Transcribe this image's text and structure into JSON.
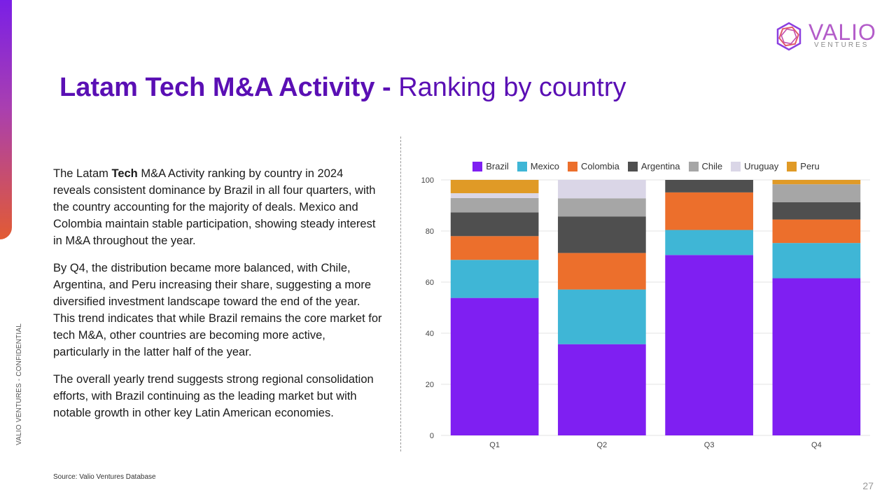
{
  "brand": {
    "name": "VALIO",
    "sub": "VENTURES",
    "vertical_label": "VALIO VENTURES - CONFIDENTIAL"
  },
  "slide": {
    "title_strong": "Latam Tech M&A Activity -",
    "title_light": " Ranking by country",
    "paragraph1_a": "The Latam ",
    "paragraph1_bold": "Tech",
    "paragraph1_b": " M&A Activity ranking by country in 2024 reveals consistent dominance by Brazil in all four quarters, with the country accounting for the majority of deals. Mexico and Colombia maintain stable participation, showing steady interest in M&A throughout the year.",
    "paragraph2": "By Q4, the distribution became more balanced, with Chile, Argentina, and Peru increasing their share, suggesting a more diversified investment landscape toward the end of the year. This trend indicates that while Brazil remains the core market for tech M&A, other countries are becoming more active, particularly in the latter half of the year.",
    "paragraph3": "The overall yearly trend suggests strong regional consolidation efforts, with Brazil continuing as the leading market but with notable growth in other key Latin American economies.",
    "source": "Source: Valio Ventures Database",
    "page_number": "27"
  },
  "chart_data": {
    "type": "bar",
    "stacked": true,
    "categories": [
      "Q1",
      "Q2",
      "Q3",
      "Q4"
    ],
    "ylim": [
      0,
      100
    ],
    "yticks": [
      0,
      20,
      40,
      60,
      80,
      100
    ],
    "grid": true,
    "legend_position": "top",
    "series": [
      {
        "name": "Brazil",
        "color": "#7f1ff2",
        "values": [
          53.8,
          35.7,
          70.6,
          61.5
        ]
      },
      {
        "name": "Mexico",
        "color": "#3fb6d6",
        "values": [
          14.9,
          21.4,
          9.8,
          13.8
        ]
      },
      {
        "name": "Colombia",
        "color": "#ec6f2c",
        "values": [
          9.3,
          14.3,
          14.7,
          9.2
        ]
      },
      {
        "name": "Argentina",
        "color": "#4f4f4f",
        "values": [
          9.3,
          14.3,
          4.9,
          6.8
        ]
      },
      {
        "name": "Chile",
        "color": "#a6a6a6",
        "values": [
          5.6,
          7.1,
          0,
          7.0
        ]
      },
      {
        "name": "Uruguay",
        "color": "#dad6e7",
        "values": [
          1.9,
          7.2,
          0,
          0
        ]
      },
      {
        "name": "Peru",
        "color": "#e09a26",
        "values": [
          5.2,
          0,
          0,
          1.7
        ]
      }
    ]
  }
}
